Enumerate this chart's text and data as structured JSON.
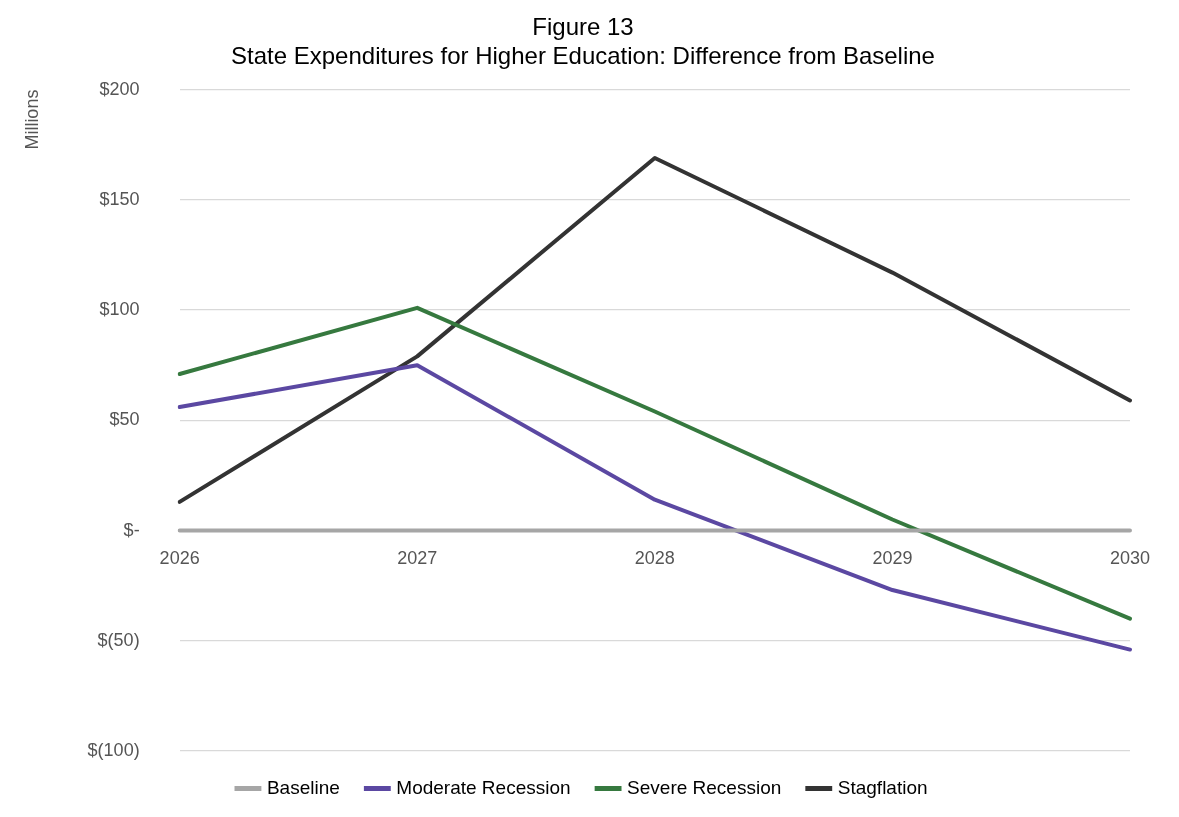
{
  "chart_data": {
    "type": "line",
    "title": "Figure 13",
    "subtitle": "State Expenditures for Higher Education: Difference from Baseline",
    "ylabel": "Millions",
    "categories": [
      "2026",
      "2027",
      "2028",
      "2029",
      "2030"
    ],
    "series": [
      {
        "name": "Baseline",
        "color": "#a6a6a6",
        "values": [
          0,
          0,
          0,
          0,
          0
        ]
      },
      {
        "name": "Moderate Recession",
        "color": "#5b48a2",
        "values": [
          56,
          75,
          14,
          -27,
          -54
        ]
      },
      {
        "name": "Severe Recession",
        "color": "#36793f",
        "values": [
          71,
          101,
          54,
          5,
          -40
        ]
      },
      {
        "name": "Stagflation",
        "color": "#333333",
        "values": [
          13,
          79,
          169,
          117,
          59
        ]
      }
    ],
    "ylim": [
      -100,
      200
    ],
    "yticks": [
      {
        "value": -100,
        "label": "$(100)"
      },
      {
        "value": -50,
        "label": "$(50)"
      },
      {
        "value": 0,
        "label": "$-"
      },
      {
        "value": 50,
        "label": "$50"
      },
      {
        "value": 100,
        "label": "$100"
      },
      {
        "value": 150,
        "label": "$150"
      },
      {
        "value": 200,
        "label": "$200"
      }
    ],
    "grid": "y",
    "legend": "bottom",
    "marker": "none",
    "line_style": "solid"
  }
}
